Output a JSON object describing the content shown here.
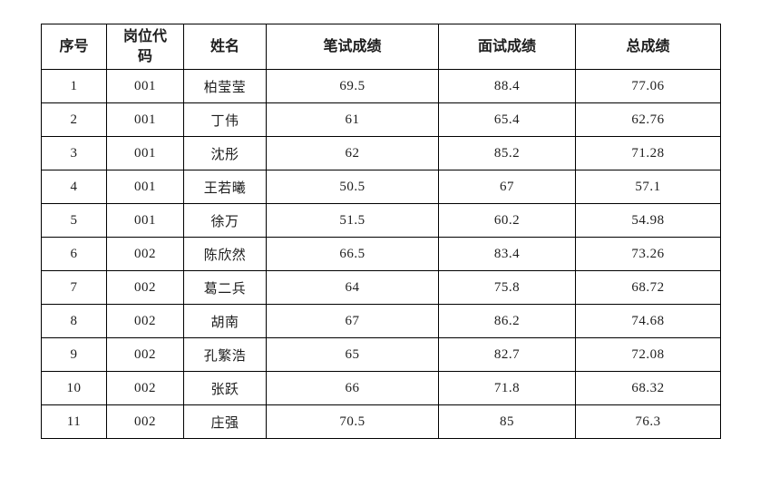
{
  "colors": {
    "text": "#1d1d1d",
    "border": "#000000",
    "page_background": "#ffffff"
  },
  "table": {
    "columns": [
      {
        "key": "no",
        "label": "序号"
      },
      {
        "key": "code",
        "label": "岗位代码"
      },
      {
        "key": "name",
        "label": "姓名"
      },
      {
        "key": "written",
        "label": "笔试成绩"
      },
      {
        "key": "interview",
        "label": "面试成绩"
      },
      {
        "key": "total",
        "label": "总成绩"
      }
    ],
    "rows": [
      {
        "no": "1",
        "code": "001",
        "name": "柏莹莹",
        "written": "69.5",
        "interview": "88.4",
        "total": "77.06"
      },
      {
        "no": "2",
        "code": "001",
        "name": "丁伟",
        "written": "61",
        "interview": "65.4",
        "total": "62.76"
      },
      {
        "no": "3",
        "code": "001",
        "name": "沈彤",
        "written": "62",
        "interview": "85.2",
        "total": "71.28"
      },
      {
        "no": "4",
        "code": "001",
        "name": "王若曦",
        "written": "50.5",
        "interview": "67",
        "total": "57.1"
      },
      {
        "no": "5",
        "code": "001",
        "name": "徐万",
        "written": "51.5",
        "interview": "60.2",
        "total": "54.98"
      },
      {
        "no": "6",
        "code": "002",
        "name": "陈欣然",
        "written": "66.5",
        "interview": "83.4",
        "total": "73.26"
      },
      {
        "no": "7",
        "code": "002",
        "name": "葛二兵",
        "written": "64",
        "interview": "75.8",
        "total": "68.72"
      },
      {
        "no": "8",
        "code": "002",
        "name": "胡南",
        "written": "67",
        "interview": "86.2",
        "total": "74.68"
      },
      {
        "no": "9",
        "code": "002",
        "name": "孔繁浩",
        "written": "65",
        "interview": "82.7",
        "total": "72.08"
      },
      {
        "no": "10",
        "code": "002",
        "name": "张跃",
        "written": "66",
        "interview": "71.8",
        "total": "68.32"
      },
      {
        "no": "11",
        "code": "002",
        "name": "庄强",
        "written": "70.5",
        "interview": "85",
        "total": "76.3"
      }
    ]
  }
}
